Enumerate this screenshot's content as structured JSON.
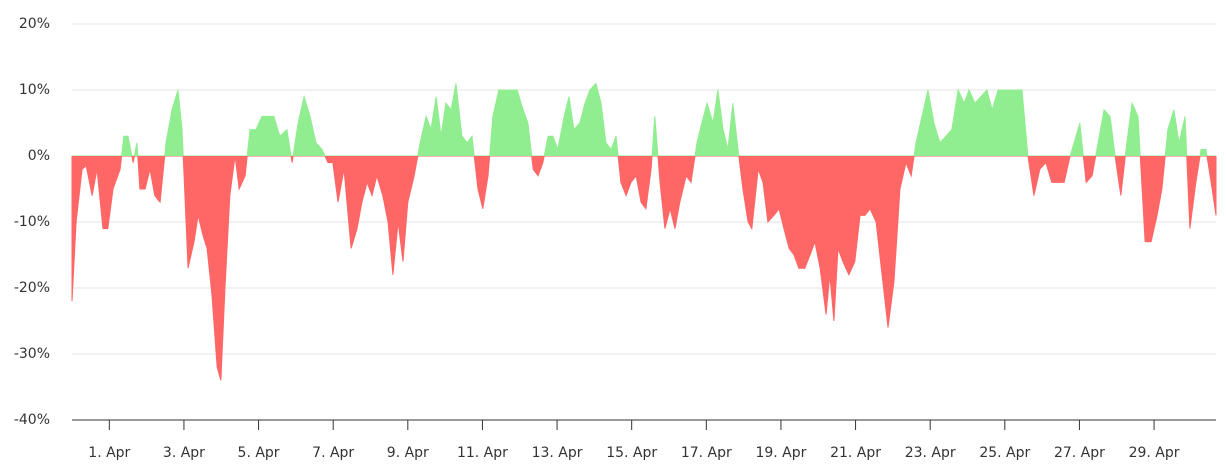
{
  "chart_data": {
    "type": "area",
    "x": [
      0,
      0.11,
      0.27,
      0.38,
      0.54,
      0.67,
      0.83,
      0.96,
      1.1,
      1.29,
      1.39,
      1.5,
      1.64,
      1.74,
      1.82,
      1.96,
      2.09,
      2.22,
      2.36,
      2.52,
      2.68,
      2.84,
      2.95,
      3.11,
      3.27,
      3.38,
      3.51,
      3.62,
      3.75,
      3.89,
      3.99,
      4.1,
      4.23,
      4.37,
      4.48,
      4.64,
      4.77,
      4.93,
      5.09,
      5.25,
      5.41,
      5.57,
      5.76,
      5.9,
      6.06,
      6.22,
      6.38,
      6.54,
      6.7,
      6.86,
      6.99,
      7.13,
      7.29,
      7.48,
      7.64,
      7.77,
      7.91,
      8.04,
      8.17,
      8.33,
      8.47,
      8.6,
      8.74,
      8.87,
      9.0,
      9.17,
      9.33,
      9.49,
      9.62,
      9.76,
      9.89,
      10.02,
      10.16,
      10.29,
      10.45,
      10.59,
      10.72,
      10.88,
      11.01,
      11.15,
      11.28,
      11.44,
      11.6,
      11.77,
      11.93,
      12.09,
      12.22,
      12.36,
      12.49,
      12.62,
      12.76,
      12.89,
      13.02,
      13.19,
      13.32,
      13.45,
      13.61,
      13.75,
      13.88,
      14.04,
      14.18,
      14.31,
      14.45,
      14.58,
      14.71,
      14.85,
      14.98,
      15.12,
      15.25,
      15.38,
      15.52,
      15.62,
      15.76,
      15.89,
      16.03,
      16.16,
      16.29,
      16.46,
      16.59,
      16.75,
      16.88,
      17.02,
      17.18,
      17.31,
      17.45,
      17.58,
      17.71,
      17.85,
      17.98,
      18.12,
      18.22,
      18.39,
      18.52,
      18.65,
      18.81,
      18.95,
      19.08,
      19.22,
      19.35,
      19.48,
      19.64,
      19.78,
      19.91,
      20.05,
      20.21,
      20.31,
      20.42,
      20.53,
      20.66,
      20.82,
      20.98,
      21.12,
      21.25,
      21.39,
      21.55,
      21.71,
      21.87,
      22.03,
      22.19,
      22.35,
      22.49,
      22.62,
      22.78,
      22.94,
      23.1,
      23.26,
      23.42,
      23.58,
      23.75,
      23.91,
      24.04,
      24.2,
      24.36,
      24.52,
      24.66,
      24.82,
      24.98,
      25.14,
      25.3,
      25.46,
      25.62,
      25.78,
      25.94,
      26.1,
      26.26,
      26.42,
      26.59,
      26.75,
      26.91,
      27.01,
      27.18,
      27.34,
      27.5,
      27.66,
      27.82,
      27.98,
      28.11,
      28.27,
      28.41,
      28.57,
      28.76,
      28.92,
      29.08,
      29.21,
      29.37,
      29.53,
      29.67,
      29.83,
      29.96,
      30.12,
      30.26,
      30.39,
      30.53,
      30.66
    ],
    "values": [
      -22,
      -10,
      -2,
      -1.5,
      -6,
      -2,
      -11,
      -11,
      -5,
      -2,
      3,
      3,
      -1,
      2,
      -5,
      -5,
      -2,
      -6,
      -7,
      2,
      7,
      10,
      4,
      -17,
      -13,
      -9,
      -12,
      -14,
      -21,
      -32,
      -34,
      -20,
      -6,
      0,
      -5,
      -3,
      4,
      4,
      6,
      6,
      6,
      3,
      4,
      -1,
      5,
      9,
      6,
      2,
      1,
      -1,
      -1,
      -7,
      -2,
      -14,
      -11,
      -7,
      -4,
      -6,
      -3,
      -6,
      -10,
      -18,
      -10,
      -16,
      -7,
      -3,
      2,
      6,
      4,
      9,
      3,
      8,
      7,
      11,
      3,
      2,
      3,
      -5,
      -8,
      -3,
      6,
      10,
      10,
      10,
      10,
      7,
      5,
      -2,
      -3,
      -1,
      3,
      3,
      1,
      6,
      9,
      4,
      5,
      8,
      10,
      11,
      8,
      2,
      1,
      3,
      -4,
      -6,
      -4,
      -3,
      -7,
      -8,
      -2,
      6,
      -4,
      -11,
      -8,
      -11,
      -7,
      -3,
      -4,
      2,
      5,
      8,
      5,
      10,
      4,
      1,
      8,
      1,
      -5,
      -10,
      -11,
      -2,
      -4,
      -10,
      -9,
      -8,
      -11,
      -14,
      -15,
      -17,
      -17,
      -15,
      -13,
      -17,
      -24,
      -18,
      -25,
      -14,
      -16,
      -18,
      -16,
      -9,
      -9,
      -8,
      -10,
      -18,
      -26,
      -19,
      -5,
      -1,
      -3,
      2,
      6,
      10,
      5,
      2,
      3,
      4,
      10,
      8,
      10,
      8,
      9,
      10,
      7,
      10,
      10,
      10,
      10,
      10,
      0,
      -6,
      -2,
      -1,
      -4,
      -4,
      -4,
      0,
      3,
      5,
      -4,
      -3,
      2,
      7,
      6,
      -1,
      -6,
      2,
      8,
      6,
      -13,
      -13,
      -9,
      -5,
      4,
      7,
      2,
      6,
      -11,
      -4,
      1,
      1,
      -4,
      -9
    ],
    "color": "#90ed90",
    "negative_color": "#ff6666",
    "xlim": [
      0,
      30.66
    ],
    "xticks": [
      {
        "value": 1,
        "label": "1. Apr"
      },
      {
        "value": 3,
        "label": "3. Apr"
      },
      {
        "value": 5,
        "label": "5. Apr"
      },
      {
        "value": 7,
        "label": "7. Apr"
      },
      {
        "value": 9,
        "label": "9. Apr"
      },
      {
        "value": 11,
        "label": "11. Apr"
      },
      {
        "value": 13,
        "label": "13. Apr"
      },
      {
        "value": 15,
        "label": "15. Apr"
      },
      {
        "value": 17,
        "label": "17. Apr"
      },
      {
        "value": 19,
        "label": "19. Apr"
      },
      {
        "value": 21,
        "label": "21. Apr"
      },
      {
        "value": 23,
        "label": "23. Apr"
      },
      {
        "value": 25,
        "label": "25. Apr"
      },
      {
        "value": 27,
        "label": "27. Apr"
      },
      {
        "value": 29,
        "label": "29. Apr"
      }
    ],
    "ylim": [
      -40,
      20
    ],
    "yticks": [
      {
        "value": -40,
        "label": "-40%"
      },
      {
        "value": -30,
        "label": "-30%"
      },
      {
        "value": -20,
        "label": "-20%"
      },
      {
        "value": -10,
        "label": "-10%"
      },
      {
        "value": 0,
        "label": "0%"
      },
      {
        "value": 10,
        "label": "10%"
      },
      {
        "value": 20,
        "label": "20%"
      }
    ],
    "grid": true
  }
}
